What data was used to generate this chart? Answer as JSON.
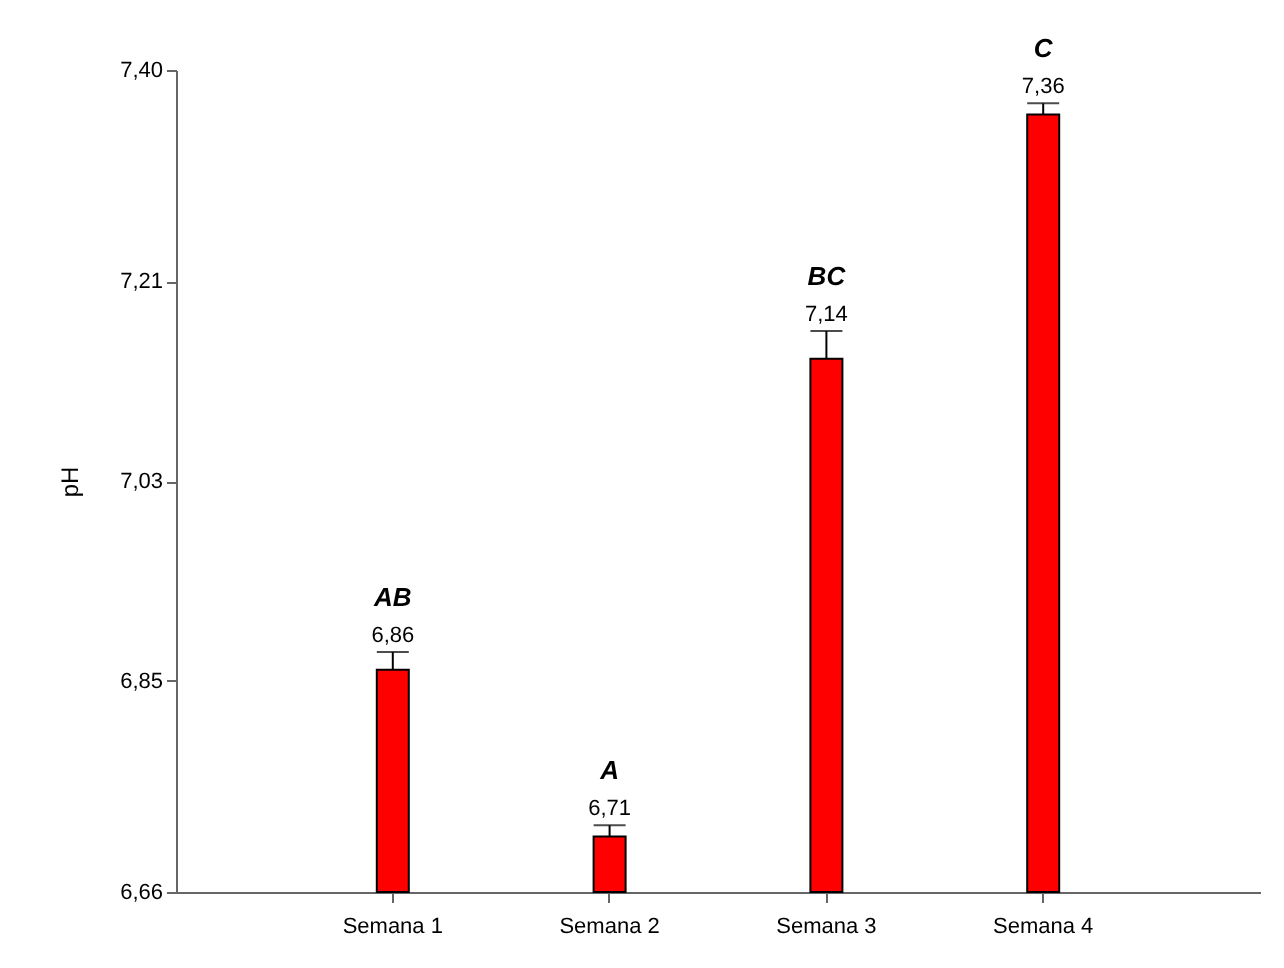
{
  "chart_data": {
    "type": "bar",
    "ylabel": "pH",
    "categories": [
      "Semana 1",
      "Semana 2",
      "Semana 3",
      "Semana 4"
    ],
    "values": [
      6.86,
      6.71,
      7.14,
      7.36
    ],
    "color": "#ff0000",
    "errors": [
      [
        6.86,
        6.876
      ],
      [
        6.71,
        6.72
      ],
      [
        7.14,
        7.165
      ],
      [
        7.36,
        7.37
      ]
    ],
    "value_labels": [
      "6,86",
      "6,71",
      "7,14",
      "7,36"
    ],
    "ylim": [
      6.66,
      7.4
    ],
    "yticks": [
      {
        "value": 6.66,
        "label": "6,66"
      },
      {
        "value": 6.85,
        "label": "6,85"
      },
      {
        "value": 7.03,
        "label": "7,03"
      },
      {
        "value": 7.21,
        "label": "7,21"
      },
      {
        "value": 7.4,
        "label": "7,40"
      }
    ],
    "annotations": [
      "AB",
      "A",
      "BC",
      "C"
    ],
    "grid": false
  }
}
